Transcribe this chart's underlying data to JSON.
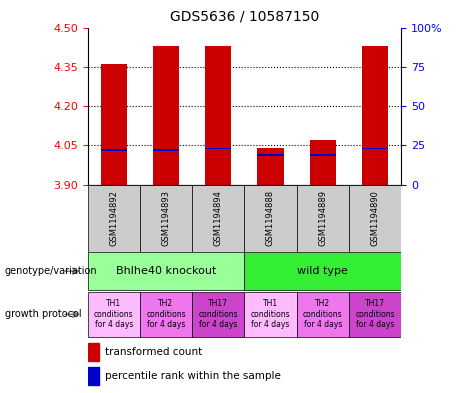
{
  "title": "GDS5636 / 10587150",
  "samples": [
    "GSM1194892",
    "GSM1194893",
    "GSM1194894",
    "GSM1194888",
    "GSM1194889",
    "GSM1194890"
  ],
  "transformed_counts": [
    4.36,
    4.43,
    4.43,
    4.04,
    4.07,
    4.43
  ],
  "percentile_ranks": [
    22,
    22,
    23,
    19,
    19,
    23
  ],
  "ylim_left": [
    3.9,
    4.5
  ],
  "ylim_right": [
    0,
    100
  ],
  "yticks_left": [
    3.9,
    4.05,
    4.2,
    4.35,
    4.5
  ],
  "yticks_right": [
    0,
    25,
    50,
    75,
    100
  ],
  "bar_color": "#cc0000",
  "percentile_color": "#0000cc",
  "genotype_groups": [
    {
      "label": "Bhlhe40 knockout",
      "span": [
        0,
        3
      ],
      "color": "#99ff99"
    },
    {
      "label": "wild type",
      "span": [
        3,
        6
      ],
      "color": "#33ee33"
    }
  ],
  "growth_protocols": [
    {
      "label": "TH1\nconditions\nfor 4 days",
      "color": "#ffbbff"
    },
    {
      "label": "TH2\nconditions\nfor 4 days",
      "color": "#ee77ee"
    },
    {
      "label": "TH17\nconditions\nfor 4 days",
      "color": "#cc44cc"
    },
    {
      "label": "TH1\nconditions\nfor 4 days",
      "color": "#ffbbff"
    },
    {
      "label": "TH2\nconditions\nfor 4 days",
      "color": "#ee77ee"
    },
    {
      "label": "TH17\nconditions\nfor 4 days",
      "color": "#cc44cc"
    }
  ],
  "sample_bg_color": "#cccccc",
  "legend_red_label": "transformed count",
  "legend_blue_label": "percentile rank within the sample"
}
